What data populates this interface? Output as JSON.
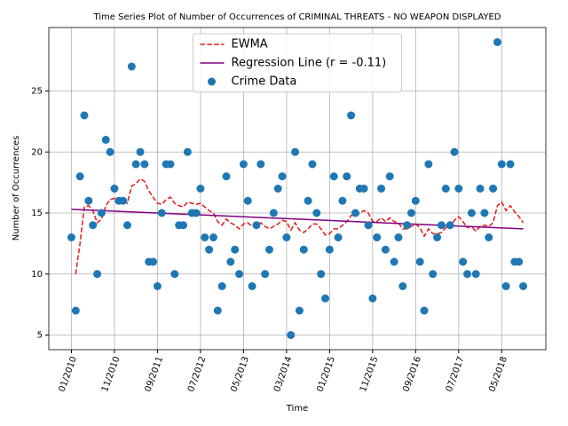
{
  "chart_data": {
    "type": "scatter",
    "title": "Time Series Plot of Number of Occurrences of CRIMINAL THREATS - NO WEAPON DISPLAYED",
    "x_label": "Time",
    "y_label": "Number of Occurrences",
    "x": [
      "01/2010",
      "02/2010",
      "03/2010",
      "04/2010",
      "05/2010",
      "06/2010",
      "07/2010",
      "08/2010",
      "09/2010",
      "10/2010",
      "11/2010",
      "12/2010",
      "01/2011",
      "02/2011",
      "03/2011",
      "04/2011",
      "05/2011",
      "06/2011",
      "07/2011",
      "08/2011",
      "09/2011",
      "10/2011",
      "11/2011",
      "12/2011",
      "01/2012",
      "02/2012",
      "03/2012",
      "04/2012",
      "05/2012",
      "06/2012",
      "07/2012",
      "08/2012",
      "09/2012",
      "10/2012",
      "11/2012",
      "12/2012",
      "01/2013",
      "02/2013",
      "03/2013",
      "04/2013",
      "05/2013",
      "06/2013",
      "07/2013",
      "08/2013",
      "09/2013",
      "10/2013",
      "11/2013",
      "12/2013",
      "01/2014",
      "02/2014",
      "03/2014",
      "04/2014",
      "05/2014",
      "06/2014",
      "07/2014",
      "08/2014",
      "09/2014",
      "10/2014",
      "11/2014",
      "12/2014",
      "01/2015",
      "02/2015",
      "03/2015",
      "04/2015",
      "05/2015",
      "06/2015",
      "07/2015",
      "08/2015",
      "09/2015",
      "10/2015",
      "11/2015",
      "12/2015",
      "01/2016",
      "02/2016",
      "03/2016",
      "04/2016",
      "05/2016",
      "06/2016",
      "07/2016",
      "08/2016",
      "09/2016",
      "10/2016",
      "11/2016",
      "12/2016",
      "01/2017",
      "02/2017",
      "03/2017",
      "04/2017",
      "05/2017",
      "06/2017",
      "07/2017",
      "08/2017",
      "09/2017",
      "10/2017",
      "11/2017",
      "12/2017",
      "01/2018",
      "02/2018",
      "03/2018",
      "04/2018",
      "05/2018",
      "06/2018",
      "07/2018",
      "08/2018",
      "09/2018",
      "10/2018"
    ],
    "series": [
      {
        "name": "EWMA",
        "type": "line",
        "color": "#e41a1c",
        "dashed": true,
        "values": [
          null,
          10,
          12.5,
          15.5,
          15.6,
          15.2,
          14.2,
          14.5,
          15.6,
          16.1,
          16.2,
          16.1,
          16.1,
          15.8,
          17.2,
          17.4,
          17.8,
          17.6,
          16.8,
          16.3,
          15.8,
          15.7,
          16.1,
          16.3,
          15.8,
          15.6,
          15.5,
          15.9,
          15.8,
          15.7,
          15.8,
          15.5,
          15.2,
          15.0,
          14.3,
          14.0,
          14.5,
          14.2,
          14.0,
          13.7,
          14.1,
          14.2,
          13.9,
          13.9,
          14.2,
          13.9,
          13.7,
          13.9,
          14.1,
          14.4,
          14.3,
          13.6,
          14.2,
          13.6,
          13.4,
          13.7,
          14.1,
          14.1,
          13.7,
          13.2,
          13.3,
          13.7,
          13.7,
          14.0,
          14.3,
          14.8,
          14.8,
          15.0,
          15.2,
          15.0,
          14.3,
          14.3,
          14.6,
          14.3,
          14.6,
          14.3,
          14.2,
          13.7,
          13.7,
          13.9,
          14.1,
          13.8,
          13.1,
          13.7,
          13.3,
          13.3,
          13.4,
          13.8,
          13.8,
          14.4,
          14.7,
          14.3,
          13.8,
          13.9,
          13.5,
          13.9,
          14.0,
          13.9,
          14.2,
          15.6,
          15.9,
          15.2,
          15.6,
          15.1,
          14.7,
          14.2
        ]
      },
      {
        "name": "Regression Line (r = -0.11)",
        "type": "line",
        "color": "#800080",
        "dashed": false,
        "x": [
          "01/2010",
          "10/2018"
        ],
        "values": [
          15.3,
          13.7
        ]
      },
      {
        "name": "Crime Data",
        "type": "scatter",
        "color": "#1f77b4",
        "values": [
          13,
          7,
          18,
          23,
          16,
          14,
          10,
          15,
          21,
          20,
          17,
          16,
          16,
          14,
          27,
          19,
          20,
          19,
          11,
          11,
          9,
          15,
          19,
          19,
          10,
          14,
          14,
          20,
          15,
          15,
          17,
          13,
          12,
          13,
          7,
          9,
          18,
          11,
          12,
          10,
          19,
          16,
          9,
          14,
          19,
          10,
          12,
          15,
          17,
          18,
          13,
          5,
          20,
          7,
          12,
          16,
          19,
          15,
          10,
          8,
          12,
          18,
          13,
          16,
          18,
          23,
          15,
          17,
          17,
          14,
          8,
          13,
          17,
          12,
          18,
          11,
          13,
          9,
          14,
          15,
          16,
          11,
          7,
          19,
          10,
          13,
          14,
          17,
          14,
          20,
          17,
          11,
          10,
          15,
          10,
          17,
          15,
          13,
          17,
          29,
          19,
          9,
          19,
          11,
          11,
          9
        ]
      }
    ],
    "xticks": [
      "01/2010",
      "11/2010",
      "09/2011",
      "07/2012",
      "05/2013",
      "03/2014",
      "01/2015",
      "11/2015",
      "09/2016",
      "07/2017",
      "05/2018"
    ],
    "ylim": [
      3.8,
      30.2
    ],
    "yticks": [
      5,
      10,
      15,
      20,
      25
    ],
    "grid": true,
    "legend": "upper center"
  }
}
